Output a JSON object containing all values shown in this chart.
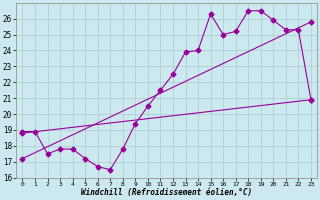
{
  "xlabel": "Windchill (Refroidissement éolien,°C)",
  "bg_color": "#cce9f0",
  "grid_color": "#aacccc",
  "line_color": "#990099",
  "xlim": [
    -0.5,
    23.5
  ],
  "ylim": [
    16,
    27
  ],
  "yticks": [
    16,
    17,
    18,
    19,
    20,
    21,
    22,
    23,
    24,
    25,
    26
  ],
  "xticks": [
    0,
    1,
    2,
    3,
    4,
    5,
    6,
    7,
    8,
    9,
    10,
    11,
    12,
    13,
    14,
    15,
    16,
    17,
    18,
    19,
    20,
    21,
    22,
    23
  ],
  "zigzag_x": [
    0,
    1,
    2,
    3,
    4,
    5,
    6,
    7,
    8,
    9,
    10,
    11,
    12,
    13,
    14,
    15,
    16,
    17,
    18,
    19,
    20,
    21,
    22,
    23
  ],
  "zigzag_y": [
    18.9,
    18.9,
    17.5,
    17.8,
    17.8,
    17.2,
    16.7,
    16.5,
    17.8,
    19.4,
    20.5,
    21.5,
    22.5,
    23.9,
    24.0,
    26.3,
    25.0,
    25.2,
    26.5,
    26.5,
    25.9,
    25.3,
    25.3,
    20.9
  ],
  "line1_x": [
    0,
    23
  ],
  "line1_y": [
    18.8,
    20.9
  ],
  "line2_x": [
    0,
    23
  ],
  "line2_y": [
    17.2,
    25.8
  ]
}
